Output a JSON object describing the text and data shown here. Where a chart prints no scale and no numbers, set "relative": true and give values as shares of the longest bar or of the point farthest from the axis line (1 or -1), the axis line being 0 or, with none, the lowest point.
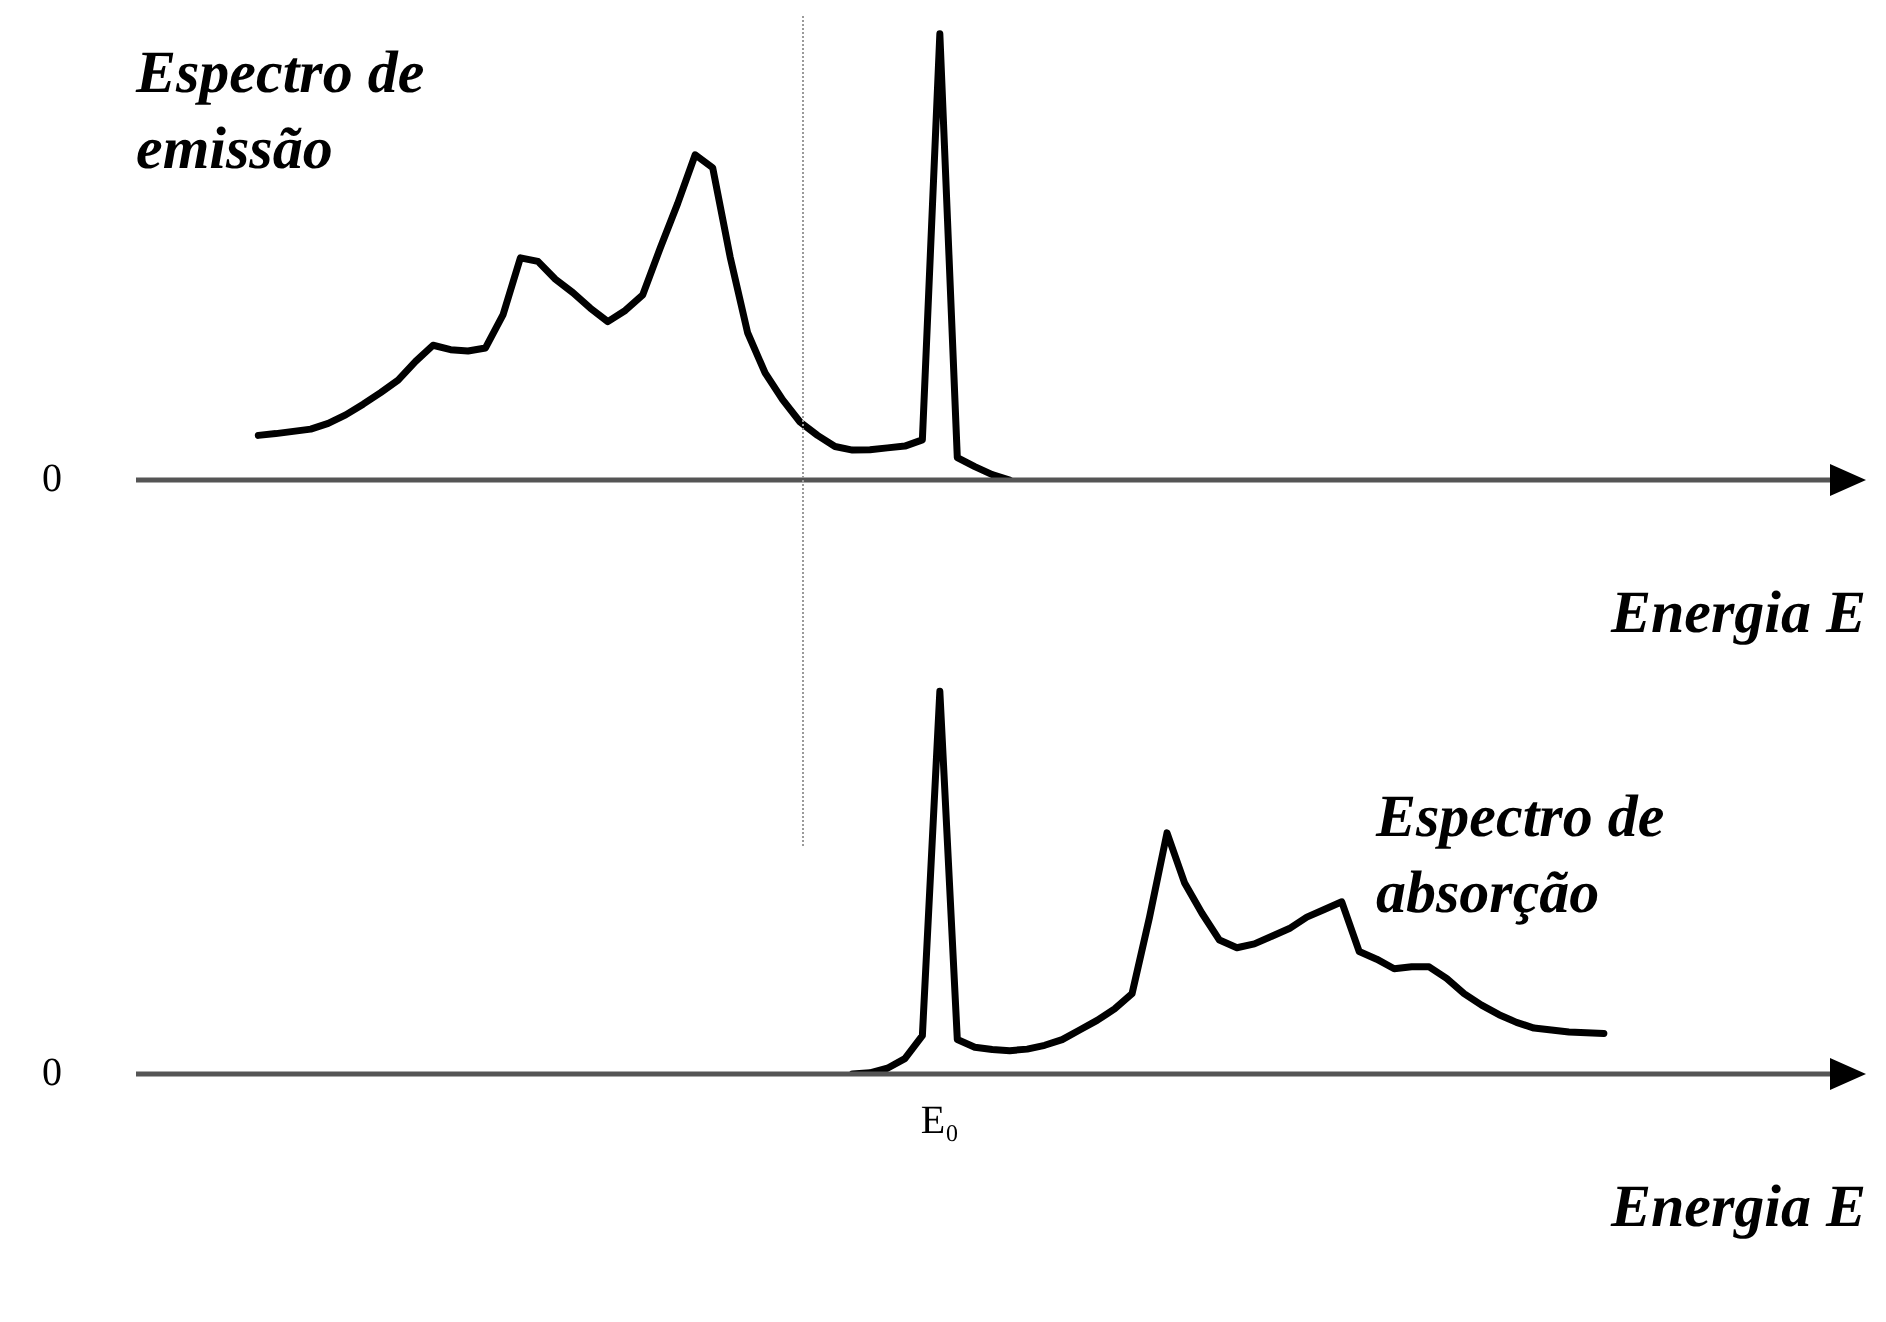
{
  "chart_data": [
    {
      "type": "line",
      "relative": true,
      "xlabel": "Energia E",
      "annotations": [
        "0"
      ],
      "marker": "none",
      "line_style": "solid",
      "categories": [
        null,
        null,
        null,
        null,
        null,
        null,
        null,
        null,
        null,
        null,
        null,
        null,
        null,
        null,
        null,
        null,
        null,
        null,
        null,
        null,
        null,
        null,
        null,
        null,
        null,
        null,
        null,
        null,
        null,
        null,
        null,
        null,
        null,
        null,
        null,
        null,
        null,
        null,
        null,
        null,
        null,
        null,
        null,
        null,
        null,
        null,
        null,
        null,
        null,
        null,
        null,
        null,
        null,
        null,
        null,
        null,
        null,
        null,
        null,
        null,
        null,
        null,
        null,
        null,
        null,
        null,
        null,
        null,
        null,
        null,
        null,
        null,
        null,
        null,
        null,
        null,
        null,
        null,
        null,
        null,
        null,
        null,
        null,
        null,
        null,
        null,
        null,
        null,
        null,
        null,
        null,
        null,
        null,
        null,
        null,
        null,
        null,
        null,
        null,
        null
      ],
      "series": [
        {
          "name": "Espectro de emissão",
          "color": "#000000",
          "values": [
            null,
            null,
            null,
            null,
            null,
            null,
            null,
            0.1,
            0.104,
            0.109,
            0.114,
            0.127,
            0.146,
            0.17,
            0.196,
            0.224,
            0.266,
            0.302,
            0.292,
            0.289,
            0.296,
            0.37,
            0.498,
            0.49,
            0.45,
            0.42,
            0.385,
            0.355,
            0.38,
            0.415,
            0.52,
            0.62,
            0.729,
            0.7,
            0.5,
            0.33,
            0.24,
            0.18,
            0.13,
            0.1,
            0.075,
            0.067,
            0.068,
            0.072,
            0.076,
            0.09,
            1,
            0.05,
            0.03,
            0.012,
            0,
            null,
            null,
            null,
            null,
            null,
            null,
            null,
            null,
            null,
            null,
            null,
            null,
            null,
            null,
            null,
            null,
            null,
            null,
            null,
            null,
            null,
            null,
            null,
            null,
            null,
            null,
            null,
            null,
            null,
            null,
            null,
            null,
            null,
            null,
            null,
            null,
            null,
            null,
            null,
            null,
            null,
            null,
            null,
            null,
            null,
            null,
            null,
            null,
            null
          ]
        }
      ]
    },
    {
      "type": "line",
      "relative": true,
      "xlabel": "Energia E",
      "annotations": [
        "0",
        "E₀"
      ],
      "marker": "none",
      "line_style": "solid",
      "categories": [
        null,
        null,
        null,
        null,
        null,
        null,
        null,
        null,
        null,
        null,
        null,
        null,
        null,
        null,
        null,
        null,
        null,
        null,
        null,
        null,
        null,
        null,
        null,
        null,
        null,
        null,
        null,
        null,
        null,
        null,
        null,
        null,
        null,
        null,
        null,
        null,
        null,
        null,
        null,
        null,
        null,
        null,
        null,
        null,
        null,
        null,
        null,
        null,
        null,
        null,
        null,
        null,
        null,
        null,
        null,
        null,
        null,
        null,
        null,
        null,
        null,
        null,
        null,
        null,
        null,
        null,
        null,
        null,
        null,
        null,
        null,
        null,
        null,
        null,
        null,
        null,
        null,
        null,
        null,
        null,
        null,
        null,
        null,
        null,
        null,
        null,
        null,
        null,
        null,
        null,
        null,
        null,
        null,
        null,
        null,
        null,
        null,
        null,
        null,
        null
      ],
      "series": [
        {
          "name": "Espectro de absorção",
          "color": "#000000",
          "values": [
            null,
            null,
            null,
            null,
            null,
            null,
            null,
            null,
            null,
            null,
            null,
            null,
            null,
            null,
            null,
            null,
            null,
            null,
            null,
            null,
            null,
            null,
            null,
            null,
            null,
            null,
            null,
            null,
            null,
            null,
            null,
            null,
            null,
            null,
            null,
            null,
            null,
            null,
            null,
            null,
            null,
            0,
            0.003,
            0.015,
            0.04,
            0.1,
            1,
            0.09,
            0.07,
            0.064,
            0.061,
            0.065,
            0.075,
            0.09,
            0.115,
            0.14,
            0.17,
            0.21,
            0.41,
            0.63,
            0.5,
            0.42,
            0.35,
            0.33,
            0.34,
            0.36,
            0.38,
            0.41,
            0.43,
            0.45,
            0.32,
            0.3,
            0.275,
            0.28,
            0.28,
            0.25,
            0.21,
            0.18,
            0.155,
            0.135,
            0.12,
            0.115,
            0.11,
            0.108,
            0.106,
            null,
            null,
            null,
            null,
            null,
            null,
            null,
            null,
            null,
            null,
            null,
            null,
            null,
            null,
            null
          ]
        }
      ]
    }
  ]
}
